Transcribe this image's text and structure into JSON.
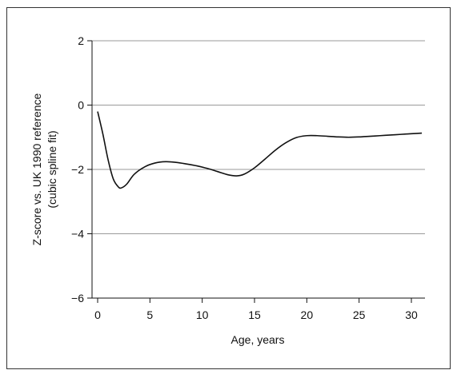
{
  "chart_data": {
    "type": "line",
    "title": "",
    "xlabel": "Age, years",
    "ylabel_line1": "Z-score vs. UK 1990 reference",
    "ylabel_line2": "(cubic spline fit)",
    "xlim": [
      0,
      31.5
    ],
    "ylim": [
      -6,
      2
    ],
    "x_ticks": [
      0,
      5,
      10,
      15,
      20,
      25,
      30
    ],
    "y_ticks": [
      -6,
      -4,
      -2,
      0,
      2
    ],
    "x_tick_labels": [
      "0",
      "5",
      "10",
      "15",
      "20",
      "25",
      "30"
    ],
    "y_tick_labels": [
      "−6",
      "−4",
      "−2",
      "0",
      "2"
    ],
    "grid": "horizontal",
    "series": [
      {
        "x": [
          0,
          0.5,
          1,
          1.5,
          2,
          2.3,
          2.8,
          3.5,
          4.5,
          5.5,
          6.5,
          7.5,
          8.5,
          9.5,
          10.5,
          11.5,
          12.5,
          13.3,
          14.0,
          15,
          16,
          17,
          18,
          19,
          20,
          21,
          22,
          23,
          24,
          25,
          26,
          27,
          28,
          29,
          30,
          31
        ],
        "y": [
          -0.2,
          -0.9,
          -1.7,
          -2.3,
          -2.55,
          -2.57,
          -2.45,
          -2.15,
          -1.92,
          -1.8,
          -1.76,
          -1.78,
          -1.83,
          -1.89,
          -1.97,
          -2.07,
          -2.17,
          -2.2,
          -2.15,
          -1.95,
          -1.68,
          -1.4,
          -1.17,
          -1.01,
          -0.95,
          -0.95,
          -0.97,
          -0.99,
          -1.0,
          -0.99,
          -0.97,
          -0.95,
          -0.93,
          -0.91,
          -0.89,
          -0.87
        ]
      }
    ]
  }
}
